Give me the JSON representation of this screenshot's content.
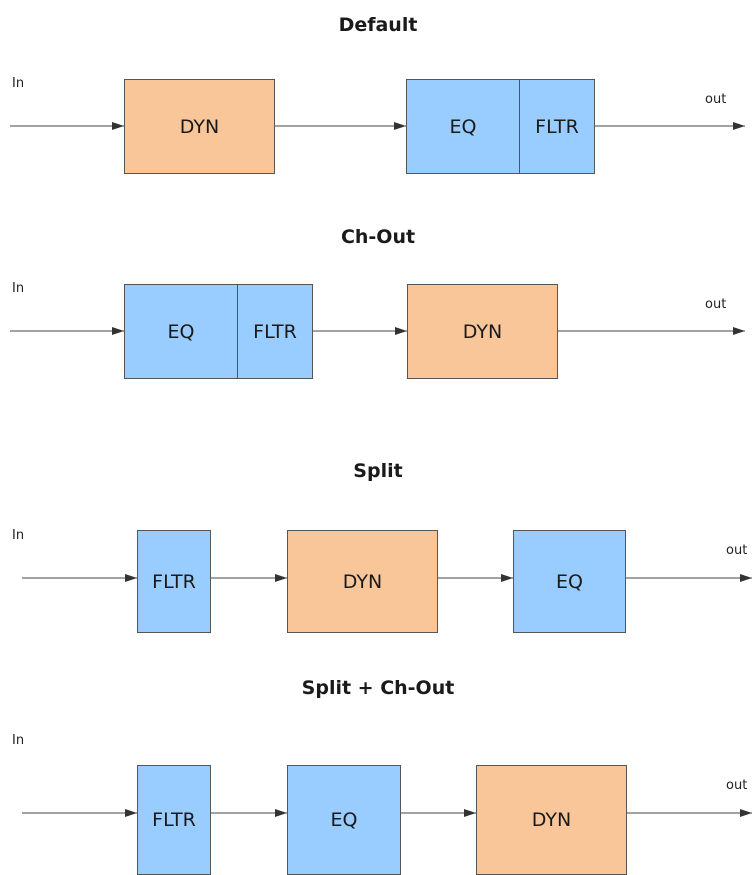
{
  "colors": {
    "dyn": "#f9c699",
    "eq_fltr": "#99ccff",
    "line": "#444444"
  },
  "diagrams": [
    {
      "title": "Default",
      "in_label": "In",
      "out_label": "out",
      "blocks": [
        "DYN",
        "EQ",
        "FLTR"
      ]
    },
    {
      "title": "Ch-Out",
      "in_label": "In",
      "out_label": "out",
      "blocks": [
        "EQ",
        "FLTR",
        "DYN"
      ]
    },
    {
      "title": "Split",
      "in_label": "In",
      "out_label": "out",
      "blocks": [
        "FLTR",
        "DYN",
        "EQ"
      ]
    },
    {
      "title": "Split + Ch-Out",
      "in_label": "In",
      "out_label": "out",
      "blocks": [
        "FLTR",
        "EQ",
        "DYN"
      ]
    }
  ]
}
